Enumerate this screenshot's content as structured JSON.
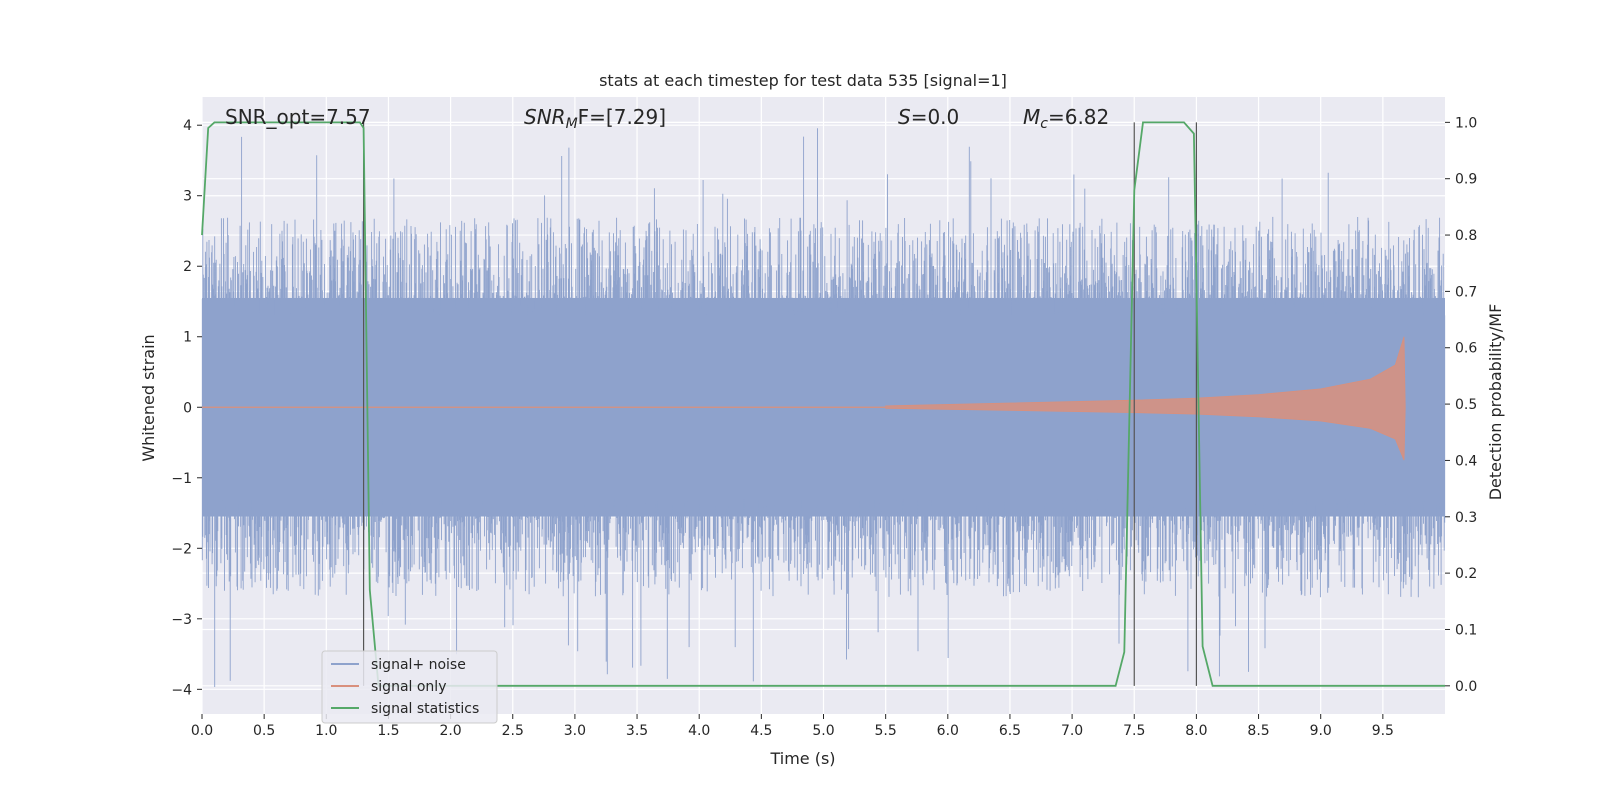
{
  "chart_data": {
    "type": "line",
    "title": "stats at each timestep for test data 535 [signal=1]",
    "xlabel": "Time (s)",
    "ylabel_left": "Whitened strain",
    "ylabel_right": "Detection probability/MF",
    "xlim": [
      0.0,
      10.0
    ],
    "ylim_left": [
      -4.35,
      4.4
    ],
    "ylim_right": [
      -0.05,
      1.045
    ],
    "x_ticks": [
      0.0,
      0.5,
      1.0,
      1.5,
      2.0,
      2.5,
      3.0,
      3.5,
      4.0,
      4.5,
      5.0,
      5.5,
      6.0,
      6.5,
      7.0,
      7.5,
      8.0,
      8.5,
      9.0,
      9.5
    ],
    "x_tick_labels": [
      "0.0",
      "0.5",
      "1.0",
      "1.5",
      "2.0",
      "2.5",
      "3.0",
      "3.5",
      "4.0",
      "4.5",
      "5.0",
      "5.5",
      "6.0",
      "6.5",
      "7.0",
      "7.5",
      "8.0",
      "8.5",
      "9.0",
      "9.5"
    ],
    "y_left_ticks": [
      -4,
      -3,
      -2,
      -1,
      0,
      1,
      2,
      3,
      4
    ],
    "y_left_tick_labels": [
      "−4",
      "−3",
      "−2",
      "−1",
      "0",
      "1",
      "2",
      "3",
      "4"
    ],
    "y_right_ticks": [
      0.0,
      0.1,
      0.2,
      0.3,
      0.4,
      0.5,
      0.6,
      0.7,
      0.8,
      0.9,
      1.0
    ],
    "y_right_tick_labels": [
      "0.0",
      "0.1",
      "0.2",
      "0.3",
      "0.4",
      "0.5",
      "0.6",
      "0.7",
      "0.8",
      "0.9",
      "1.0"
    ],
    "grid": true,
    "legend_position": "lower-left",
    "annotations": {
      "snr_opt": "SNR_opt=7.57",
      "snr_mf": "SNR",
      "snr_mf_sub": "M",
      "snr_mf_suffix": "F=[7.29]",
      "s_label": "S",
      "s_value": "=0.0",
      "mc_label": "M",
      "mc_sub": "c",
      "mc_value": "=6.82"
    },
    "vertical_lines_x": [
      1.3,
      7.5,
      8.0
    ],
    "series": [
      {
        "name": "signal+ noise",
        "color": "#8ea2cc",
        "axis": "left",
        "style": "dense noise, envelope roughly ±2.5, peaks to ±4"
      },
      {
        "name": "signal only",
        "color": "#d9907d",
        "axis": "left",
        "style": "chirp growing from x≈5.5 to merger at x≈9.67",
        "envelope_x": [
          5.5,
          6.5,
          7.5,
          8.0,
          8.5,
          9.0,
          9.4,
          9.6,
          9.67,
          9.68
        ],
        "envelope_y": [
          0.02,
          0.06,
          0.1,
          0.13,
          0.18,
          0.26,
          0.4,
          0.6,
          1.0,
          0.0
        ]
      },
      {
        "name": "signal statistics",
        "color": "#55a868",
        "axis": "right",
        "x": [
          0.0,
          0.05,
          0.1,
          0.2,
          0.5,
          1.0,
          1.2,
          1.27,
          1.3,
          1.35,
          1.42,
          1.5,
          2.0,
          2.5,
          3.0,
          3.45,
          4.0,
          4.5,
          5.0,
          6.0,
          7.0,
          7.35,
          7.42,
          7.5,
          7.57,
          7.9,
          7.98,
          8.05,
          8.13,
          8.5,
          9.0,
          9.7,
          10.0
        ],
        "y": [
          0.8,
          0.99,
          1.0,
          1.0,
          1.0,
          1.0,
          1.0,
          1.0,
          0.99,
          0.17,
          0.0,
          0.0,
          0.0,
          0.0,
          0.0,
          0.0,
          0.0,
          0.0,
          0.0,
          0.0,
          0.0,
          0.0,
          0.06,
          0.88,
          1.0,
          1.0,
          0.98,
          0.07,
          0.0,
          0.0,
          0.0,
          0.0,
          0.0
        ]
      }
    ]
  }
}
